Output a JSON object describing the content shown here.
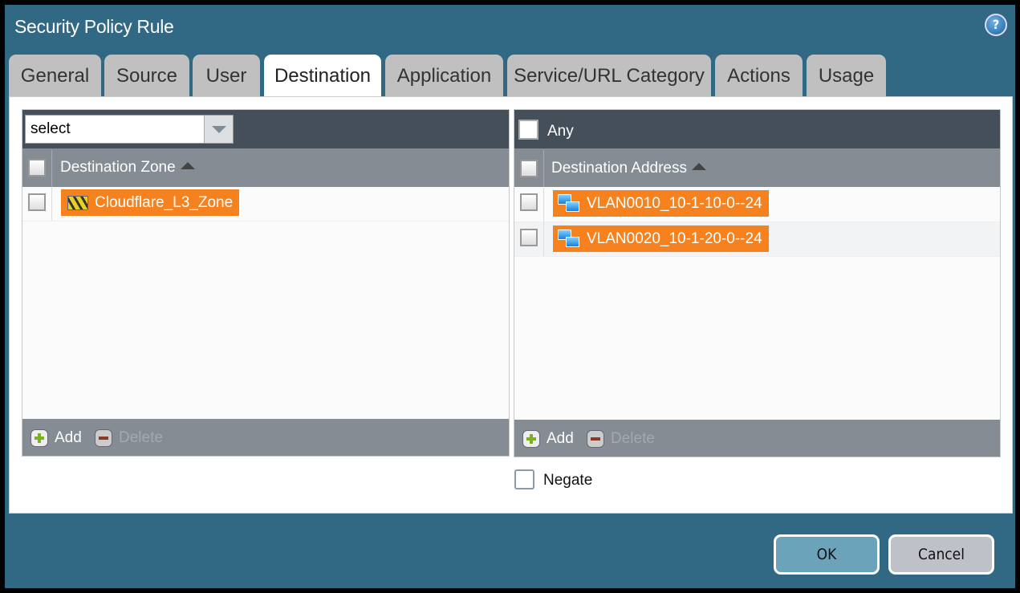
{
  "dialog": {
    "title": "Security Policy Rule",
    "help_icon": "help-circle-icon"
  },
  "tabs": [
    {
      "label": "General"
    },
    {
      "label": "Source"
    },
    {
      "label": "User"
    },
    {
      "label": "Destination",
      "active": true
    },
    {
      "label": "Application"
    },
    {
      "label": "Service/URL Category"
    },
    {
      "label": "Actions"
    },
    {
      "label": "Usage"
    }
  ],
  "zone_panel": {
    "select_value": "select",
    "column": "Destination Zone",
    "rows": [
      {
        "name": "Cloudflare_L3_Zone",
        "icon": "zone-icon"
      }
    ],
    "add_label": "Add",
    "delete_label": "Delete"
  },
  "address_panel": {
    "any_label": "Any",
    "any_checked": false,
    "column": "Destination Address",
    "rows": [
      {
        "name": "VLAN0010_10-1-10-0--24",
        "icon": "address-object-icon"
      },
      {
        "name": "VLAN0020_10-1-20-0--24",
        "icon": "address-object-icon"
      }
    ],
    "add_label": "Add",
    "delete_label": "Delete",
    "negate_label": "Negate",
    "negate_checked": false
  },
  "buttons": {
    "ok": "OK",
    "cancel": "Cancel"
  },
  "colors": {
    "dialog_bg": "#316884",
    "tag_bg": "#f5821f",
    "ok_bg": "#6ba3bb",
    "cancel_bg": "#bec1c7"
  }
}
